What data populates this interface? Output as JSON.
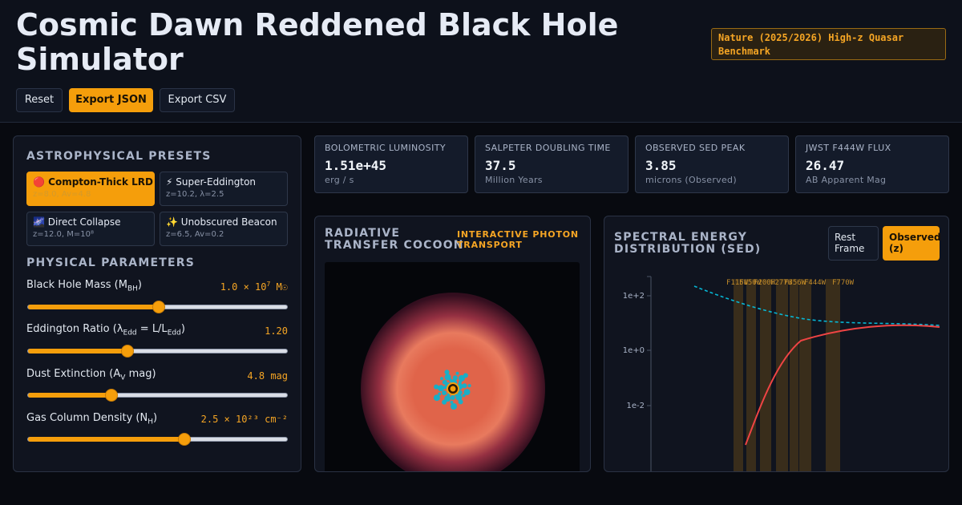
{
  "header": {
    "title": "Cosmic Dawn Reddened Black Hole Simulator",
    "badge": "Nature (2025/2026) High-z Quasar Benchmark",
    "buttons": {
      "reset": "Reset",
      "export_json": "Export JSON",
      "export_csv": "Export CSV"
    }
  },
  "presets": {
    "title": "ASTROPHYSICAL PRESETS",
    "items": [
      {
        "icon": "🔴",
        "name": "Compton-Thick LRD",
        "meta": "z=8.0, Av=4.8",
        "active": true
      },
      {
        "icon": "⚡",
        "name": "Super-Eddington",
        "meta": "z=10.2, λ=2.5",
        "active": false
      },
      {
        "icon": "🌌",
        "name": "Direct Collapse",
        "meta": "z=12.0, M=10⁸",
        "active": false
      },
      {
        "icon": "✨",
        "name": "Unobscured Beacon",
        "meta": "z=6.5, Av=0.2",
        "active": false
      }
    ]
  },
  "parameters": {
    "title": "PHYSICAL PARAMETERS",
    "bh_mass": {
      "label": "Black Hole Mass (M",
      "sub": "BH",
      "label_end": ")",
      "value": "1.0 × 10",
      "exp": "7",
      "unit": " M☉",
      "fraction": 0.5
    },
    "eddington": {
      "label": "Eddington Ratio (λ",
      "sub": "Edd",
      "label_mid": " = L/L",
      "sub2": "Edd",
      "label_end": ")",
      "value": "1.20",
      "fraction": 0.38
    },
    "dust": {
      "label": "Dust Extinction (A",
      "sub": "V",
      "label_end": " mag)",
      "value": "4.8 mag",
      "fraction": 0.32
    },
    "gas": {
      "label": "Gas Column Density (N",
      "sub": "H",
      "label_end": ")",
      "value": "2.5 × 10²³ cm⁻²",
      "fraction": 0.6
    }
  },
  "metrics": [
    {
      "label": "BOLOMETRIC LUMINOSITY",
      "value": "1.51e+45",
      "unit": "erg / s"
    },
    {
      "label": "SALPETER DOUBLING TIME",
      "value": "37.5",
      "unit": "Million Years"
    },
    {
      "label": "OBSERVED SED PEAK",
      "value": "3.85",
      "unit": "microns (Observed)"
    },
    {
      "label": "JWST F444W FLUX",
      "value": "26.47",
      "unit": "AB Apparent Mag"
    }
  ],
  "cocoon": {
    "title_line1": "RADIATIVE",
    "title_line2": "TRANSFER COCOON",
    "tag_line1": "INTERACTIVE PHOTON",
    "tag_line2": "TRANSPORT",
    "colors": {
      "glow": "#e0644a",
      "photons": "#06b6d4",
      "core": "#f59e0b"
    }
  },
  "sed": {
    "title_line1": "SPECTRAL ENERGY",
    "title_line2": "DISTRIBUTION (SED)",
    "toggle_rest": "Rest Frame",
    "toggle_observed": "Observed (z)",
    "view": "observed",
    "filters": [
      "F115W",
      "F150W",
      "F200W",
      "F277W",
      "F356W",
      "F444W",
      "F770W"
    ],
    "yticks": [
      "1e+2",
      "1e+0",
      "1e-2"
    ],
    "colors": {
      "reddened": "#ef4444",
      "intrinsic": "#06b6d4",
      "band": "#f59e0b"
    }
  }
}
